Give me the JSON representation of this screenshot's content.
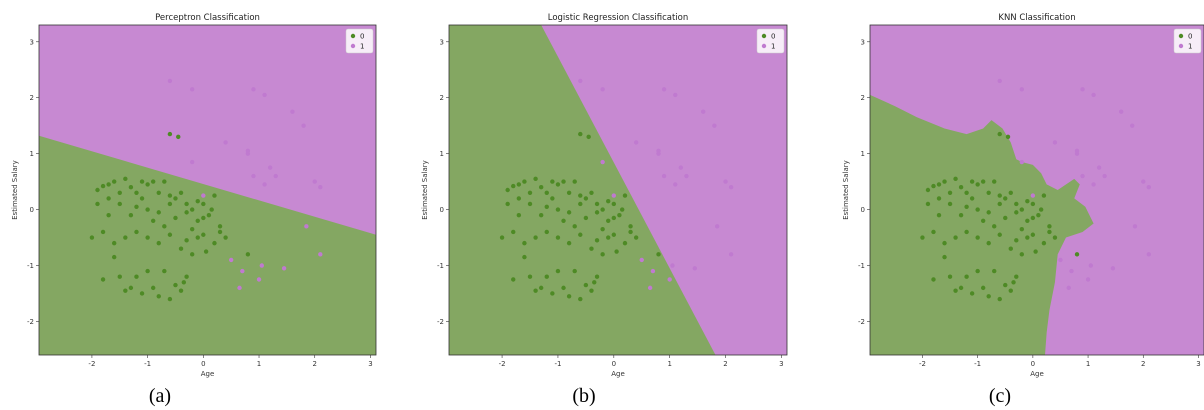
{
  "colors": {
    "class0_region": "#84a762",
    "class1_region": "#c789d2",
    "class0_point": "#4e8a25",
    "class1_point": "#c07ad0"
  },
  "captions": [
    "(a)",
    "(b)",
    "(c)"
  ],
  "points_class0": [
    [
      -1.9,
      0.35
    ],
    [
      -1.8,
      0.42
    ],
    [
      -1.7,
      0.45
    ],
    [
      -1.6,
      0.5
    ],
    [
      -1.5,
      0.3
    ],
    [
      -1.4,
      0.55
    ],
    [
      -1.3,
      0.4
    ],
    [
      -1.2,
      0.3
    ],
    [
      -1.1,
      0.5
    ],
    [
      -1.0,
      0.45
    ],
    [
      -0.9,
      0.5
    ],
    [
      -0.8,
      0.3
    ],
    [
      -0.7,
      0.5
    ],
    [
      -0.6,
      0.25
    ],
    [
      -0.5,
      0.2
    ],
    [
      -0.4,
      0.3
    ],
    [
      -0.3,
      0.1
    ],
    [
      -0.2,
      0.0
    ],
    [
      -0.1,
      0.15
    ],
    [
      0.0,
      0.1
    ],
    [
      0.2,
      0.25
    ],
    [
      -1.9,
      0.1
    ],
    [
      -1.7,
      -0.1
    ],
    [
      -1.5,
      0.1
    ],
    [
      -1.3,
      -0.1
    ],
    [
      -1.2,
      0.05
    ],
    [
      -1.0,
      0.0
    ],
    [
      -0.9,
      -0.2
    ],
    [
      -0.8,
      -0.05
    ],
    [
      -0.6,
      0.1
    ],
    [
      -0.5,
      -0.15
    ],
    [
      -0.3,
      -0.05
    ],
    [
      -0.1,
      -0.2
    ],
    [
      0.0,
      -0.15
    ],
    [
      0.1,
      -0.1
    ],
    [
      0.3,
      -0.3
    ],
    [
      0.4,
      -0.5
    ],
    [
      -2.0,
      -0.5
    ],
    [
      -1.8,
      -0.4
    ],
    [
      -1.6,
      -0.6
    ],
    [
      -1.4,
      -0.5
    ],
    [
      -1.2,
      -0.4
    ],
    [
      -1.0,
      -0.5
    ],
    [
      -0.8,
      -0.6
    ],
    [
      -0.6,
      -0.45
    ],
    [
      -0.4,
      -0.7
    ],
    [
      -0.3,
      -0.55
    ],
    [
      -0.2,
      -0.35
    ],
    [
      0.0,
      -0.45
    ],
    [
      0.2,
      -0.6
    ],
    [
      0.3,
      -0.4
    ],
    [
      -1.5,
      -1.2
    ],
    [
      -1.4,
      -1.45
    ],
    [
      -1.2,
      -1.2
    ],
    [
      -1.0,
      -1.1
    ],
    [
      -0.9,
      -1.4
    ],
    [
      -0.8,
      -1.55
    ],
    [
      -0.7,
      -1.1
    ],
    [
      -0.5,
      -1.35
    ],
    [
      -0.4,
      -1.45
    ],
    [
      -0.3,
      -1.2
    ],
    [
      -1.8,
      -1.25
    ],
    [
      -1.3,
      -1.4
    ],
    [
      -0.6,
      -1.6
    ],
    [
      -1.1,
      -1.5
    ],
    [
      -0.35,
      -1.3
    ],
    [
      -0.2,
      -0.8
    ],
    [
      -0.1,
      -0.5
    ],
    [
      0.05,
      -0.75
    ],
    [
      -1.6,
      -0.85
    ],
    [
      -1.7,
      0.2
    ],
    [
      -1.1,
      0.2
    ],
    [
      -0.7,
      -0.3
    ],
    [
      0.8,
      -0.8
    ],
    [
      -0.6,
      1.35
    ],
    [
      -0.45,
      1.3
    ],
    [
      0.15,
      0.0
    ]
  ],
  "points_class1": [
    [
      -0.6,
      2.3
    ],
    [
      -0.2,
      2.15
    ],
    [
      0.9,
      2.15
    ],
    [
      1.1,
      2.05
    ],
    [
      1.6,
      1.75
    ],
    [
      1.8,
      1.5
    ],
    [
      0.4,
      1.2
    ],
    [
      0.8,
      1.05
    ],
    [
      0.8,
      1.0
    ],
    [
      0.9,
      0.6
    ],
    [
      1.2,
      0.75
    ],
    [
      1.3,
      0.6
    ],
    [
      -0.2,
      0.85
    ],
    [
      1.1,
      0.45
    ],
    [
      2.0,
      0.5
    ],
    [
      2.1,
      0.4
    ],
    [
      1.85,
      -0.3
    ],
    [
      2.1,
      -0.8
    ],
    [
      0.7,
      -1.1
    ],
    [
      0.65,
      -1.4
    ],
    [
      1.0,
      -1.25
    ],
    [
      1.05,
      -1.0
    ],
    [
      1.45,
      -1.05
    ],
    [
      0.5,
      -0.9
    ],
    [
      0.0,
      0.25
    ]
  ],
  "chart_data": [
    {
      "type": "scatter",
      "title": "Perceptron Classification",
      "xlabel": "Age",
      "ylabel": "Estimated Salary",
      "xlim": [
        -2.95,
        3.1
      ],
      "ylim": [
        -2.6,
        3.3
      ],
      "xticks": [
        -2,
        -1,
        0,
        1,
        2,
        3
      ],
      "yticks": [
        -2,
        -1,
        0,
        1,
        2,
        3
      ],
      "legend": {
        "position": "top-right",
        "labels": [
          "0",
          "1"
        ]
      },
      "decision_boundary": {
        "kind": "linear",
        "line": [
          [
            -2.95,
            1.32
          ],
          [
            3.1,
            -0.45
          ]
        ]
      },
      "series_ref": [
        "points_class0",
        "points_class1"
      ]
    },
    {
      "type": "scatter",
      "title": "Logistic Regression Classification",
      "xlabel": "Age",
      "ylabel": "Estimated Salary",
      "xlim": [
        -2.95,
        3.1
      ],
      "ylim": [
        -2.6,
        3.3
      ],
      "xticks": [
        -2,
        -1,
        0,
        1,
        2,
        3
      ],
      "yticks": [
        -2,
        -1,
        0,
        1,
        2,
        3
      ],
      "legend": {
        "position": "top-right",
        "labels": [
          "0",
          "1"
        ]
      },
      "decision_boundary": {
        "kind": "linear",
        "line": [
          [
            -1.3,
            3.3
          ],
          [
            1.82,
            -2.6
          ]
        ]
      },
      "series_ref": [
        "points_class0",
        "points_class1"
      ]
    },
    {
      "type": "scatter",
      "title": "KNN Classification",
      "xlabel": "Age",
      "ylabel": "Estimated Salary",
      "xlim": [
        -2.95,
        3.1
      ],
      "ylim": [
        -2.6,
        3.3
      ],
      "xticks": [
        -2,
        -1,
        0,
        1,
        2,
        3
      ],
      "yticks": [
        -2,
        -1,
        0,
        1,
        2,
        3
      ],
      "legend": {
        "position": "top-right",
        "labels": [
          "0",
          "1"
        ]
      },
      "decision_boundary": {
        "kind": "nonlinear",
        "class0_region": [
          [
            -2.95,
            -2.6
          ],
          [
            -2.95,
            2.05
          ],
          [
            -2.5,
            1.85
          ],
          [
            -2.1,
            1.65
          ],
          [
            -1.6,
            1.45
          ],
          [
            -1.2,
            1.35
          ],
          [
            -0.9,
            1.45
          ],
          [
            -0.75,
            1.6
          ],
          [
            -0.55,
            1.45
          ],
          [
            -0.4,
            1.2
          ],
          [
            -0.3,
            0.9
          ],
          [
            -0.2,
            0.85
          ],
          [
            0.0,
            0.8
          ],
          [
            0.15,
            0.65
          ],
          [
            0.25,
            0.45
          ],
          [
            0.45,
            0.35
          ],
          [
            0.75,
            0.55
          ],
          [
            0.85,
            0.45
          ],
          [
            0.75,
            0.2
          ],
          [
            0.95,
            0.05
          ],
          [
            1.1,
            -0.25
          ],
          [
            0.9,
            -0.4
          ],
          [
            0.6,
            -0.5
          ],
          [
            0.45,
            -0.8
          ],
          [
            0.4,
            -1.3
          ],
          [
            0.3,
            -1.8
          ],
          [
            0.25,
            -2.2
          ],
          [
            0.22,
            -2.6
          ]
        ]
      },
      "series_ref": [
        "points_class0",
        "points_class1"
      ]
    }
  ]
}
